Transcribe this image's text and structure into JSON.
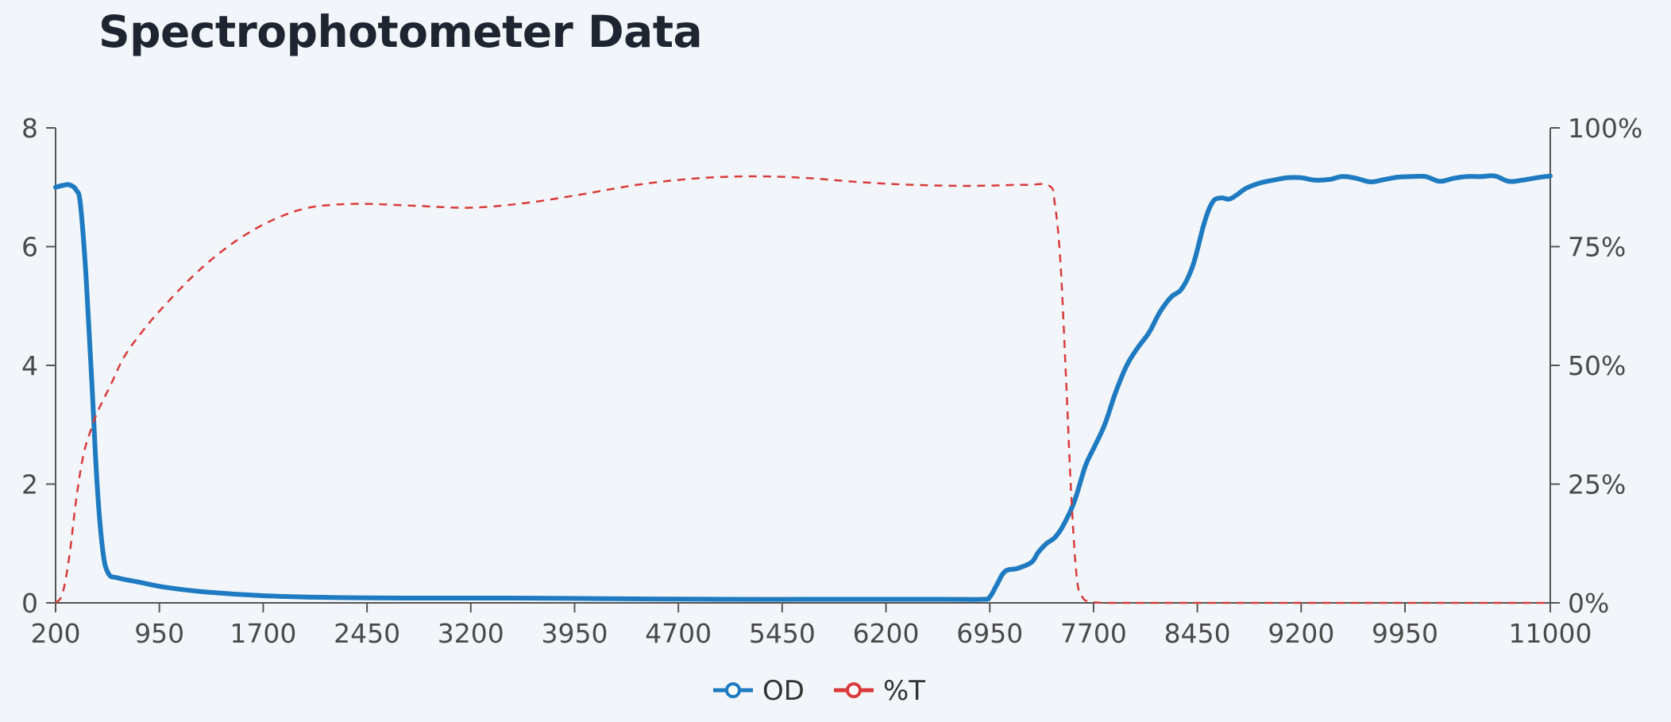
{
  "chart_data": {
    "type": "line",
    "title": "Spectrophotometer Data",
    "xlabel": "",
    "ylabel": "",
    "y2label": "",
    "xlim": [
      200,
      11000
    ],
    "ylim": [
      0,
      8
    ],
    "y2lim": [
      0,
      100
    ],
    "grid": false,
    "legend_position": "bottom",
    "x_ticks": [
      "200",
      "950",
      "1700",
      "2450",
      "3200",
      "3950",
      "4700",
      "5450",
      "6200",
      "6950",
      "7700",
      "8450",
      "9200",
      "9950",
      "11000"
    ],
    "y_ticks": [
      "0",
      "2",
      "4",
      "6",
      "8"
    ],
    "y2_ticks": [
      "0%",
      "25%",
      "50%",
      "75%",
      "100%"
    ],
    "series": [
      {
        "name": "OD",
        "axis": "left",
        "color": "#1f7bc1",
        "style": "solid",
        "x": [
          200,
          250,
          300,
          350,
          380,
          420,
          460,
          500,
          540,
          580,
          650,
          800,
          1000,
          1300,
          1700,
          2200,
          2800,
          3500,
          4200,
          5000,
          5800,
          6600,
          6900,
          6950,
          7000,
          7060,
          7150,
          7250,
          7300,
          7360,
          7420,
          7480,
          7560,
          7640,
          7700,
          7780,
          7860,
          7940,
          8020,
          8100,
          8180,
          8260,
          8340,
          8420,
          8500,
          8560,
          8620,
          8680,
          8740,
          8800,
          8900,
          9000,
          9100,
          9200,
          9300,
          9400,
          9500,
          9600,
          9700,
          9800,
          9900,
          10000,
          10100,
          10200,
          10300,
          10400,
          10500,
          10600,
          10700,
          10800,
          10900,
          11000
        ],
        "values": [
          7.0,
          7.03,
          7.04,
          6.95,
          6.7,
          5.5,
          3.8,
          2.0,
          0.9,
          0.5,
          0.42,
          0.35,
          0.26,
          0.18,
          0.12,
          0.09,
          0.08,
          0.08,
          0.07,
          0.06,
          0.06,
          0.06,
          0.06,
          0.1,
          0.3,
          0.53,
          0.58,
          0.68,
          0.85,
          1.0,
          1.1,
          1.3,
          1.7,
          2.3,
          2.6,
          3.0,
          3.55,
          4.0,
          4.3,
          4.55,
          4.9,
          5.15,
          5.3,
          5.7,
          6.4,
          6.75,
          6.82,
          6.8,
          6.88,
          6.98,
          7.07,
          7.12,
          7.16,
          7.16,
          7.12,
          7.13,
          7.18,
          7.15,
          7.09,
          7.13,
          7.17,
          7.18,
          7.18,
          7.1,
          7.15,
          7.18,
          7.18,
          7.19,
          7.1,
          7.12,
          7.16,
          7.19
        ]
      },
      {
        "name": "%T",
        "axis": "right",
        "color": "#d93a3a",
        "style": "dashed",
        "x": [
          200,
          250,
          300,
          350,
          400,
          450,
          500,
          600,
          700,
          850,
          1000,
          1200,
          1400,
          1600,
          1800,
          2000,
          2200,
          2450,
          2800,
          3200,
          3600,
          4000,
          4400,
          4800,
          5200,
          5600,
          6000,
          6400,
          6800,
          7200,
          7380,
          7420,
          7460,
          7500,
          7540,
          7580,
          7620,
          7660,
          7700,
          7800,
          8000,
          9000,
          10000,
          11000
        ],
        "values": [
          0,
          2,
          10,
          22,
          31,
          36,
          40,
          46,
          52,
          58,
          63,
          69,
          74,
          78,
          81,
          83,
          83.8,
          84,
          83.6,
          83.2,
          84.2,
          86,
          88,
          89.3,
          89.8,
          89.5,
          88.6,
          88,
          87.8,
          88,
          87.8,
          84,
          72,
          48,
          22,
          5,
          1.2,
          0.3,
          0.1,
          0,
          0,
          0,
          0,
          0
        ]
      }
    ]
  }
}
